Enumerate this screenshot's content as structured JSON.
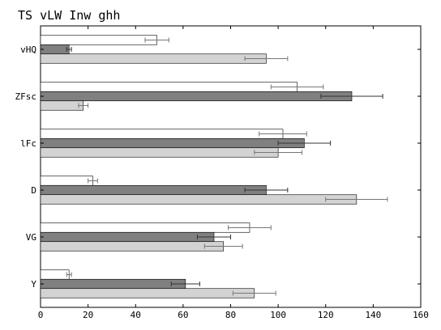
{
  "chart_data": {
    "type": "bar",
    "orientation": "horizontal",
    "title": "TS vLW Inw ghh",
    "categories": [
      "vHQ",
      "ZFsc",
      "lFc",
      "D",
      "VG",
      "Y"
    ],
    "xlim": [
      0,
      160
    ],
    "xticks": [
      0,
      20,
      40,
      60,
      80,
      100,
      120,
      140,
      160
    ],
    "grid": false,
    "legend": "none",
    "series": [
      {
        "color": "#ffffff",
        "values": [
          49,
          108,
          102,
          22,
          88,
          12
        ],
        "errors": [
          5,
          11,
          10,
          2,
          9,
          1
        ]
      },
      {
        "color": "#808080",
        "values": [
          12,
          131,
          111,
          95,
          73,
          61
        ],
        "errors": [
          1,
          13,
          11,
          9,
          7,
          6
        ]
      },
      {
        "color": "#d3d3d3",
        "values": [
          95,
          18,
          100,
          133,
          77,
          90
        ],
        "errors": [
          9,
          2,
          10,
          13,
          8,
          9
        ]
      }
    ]
  }
}
